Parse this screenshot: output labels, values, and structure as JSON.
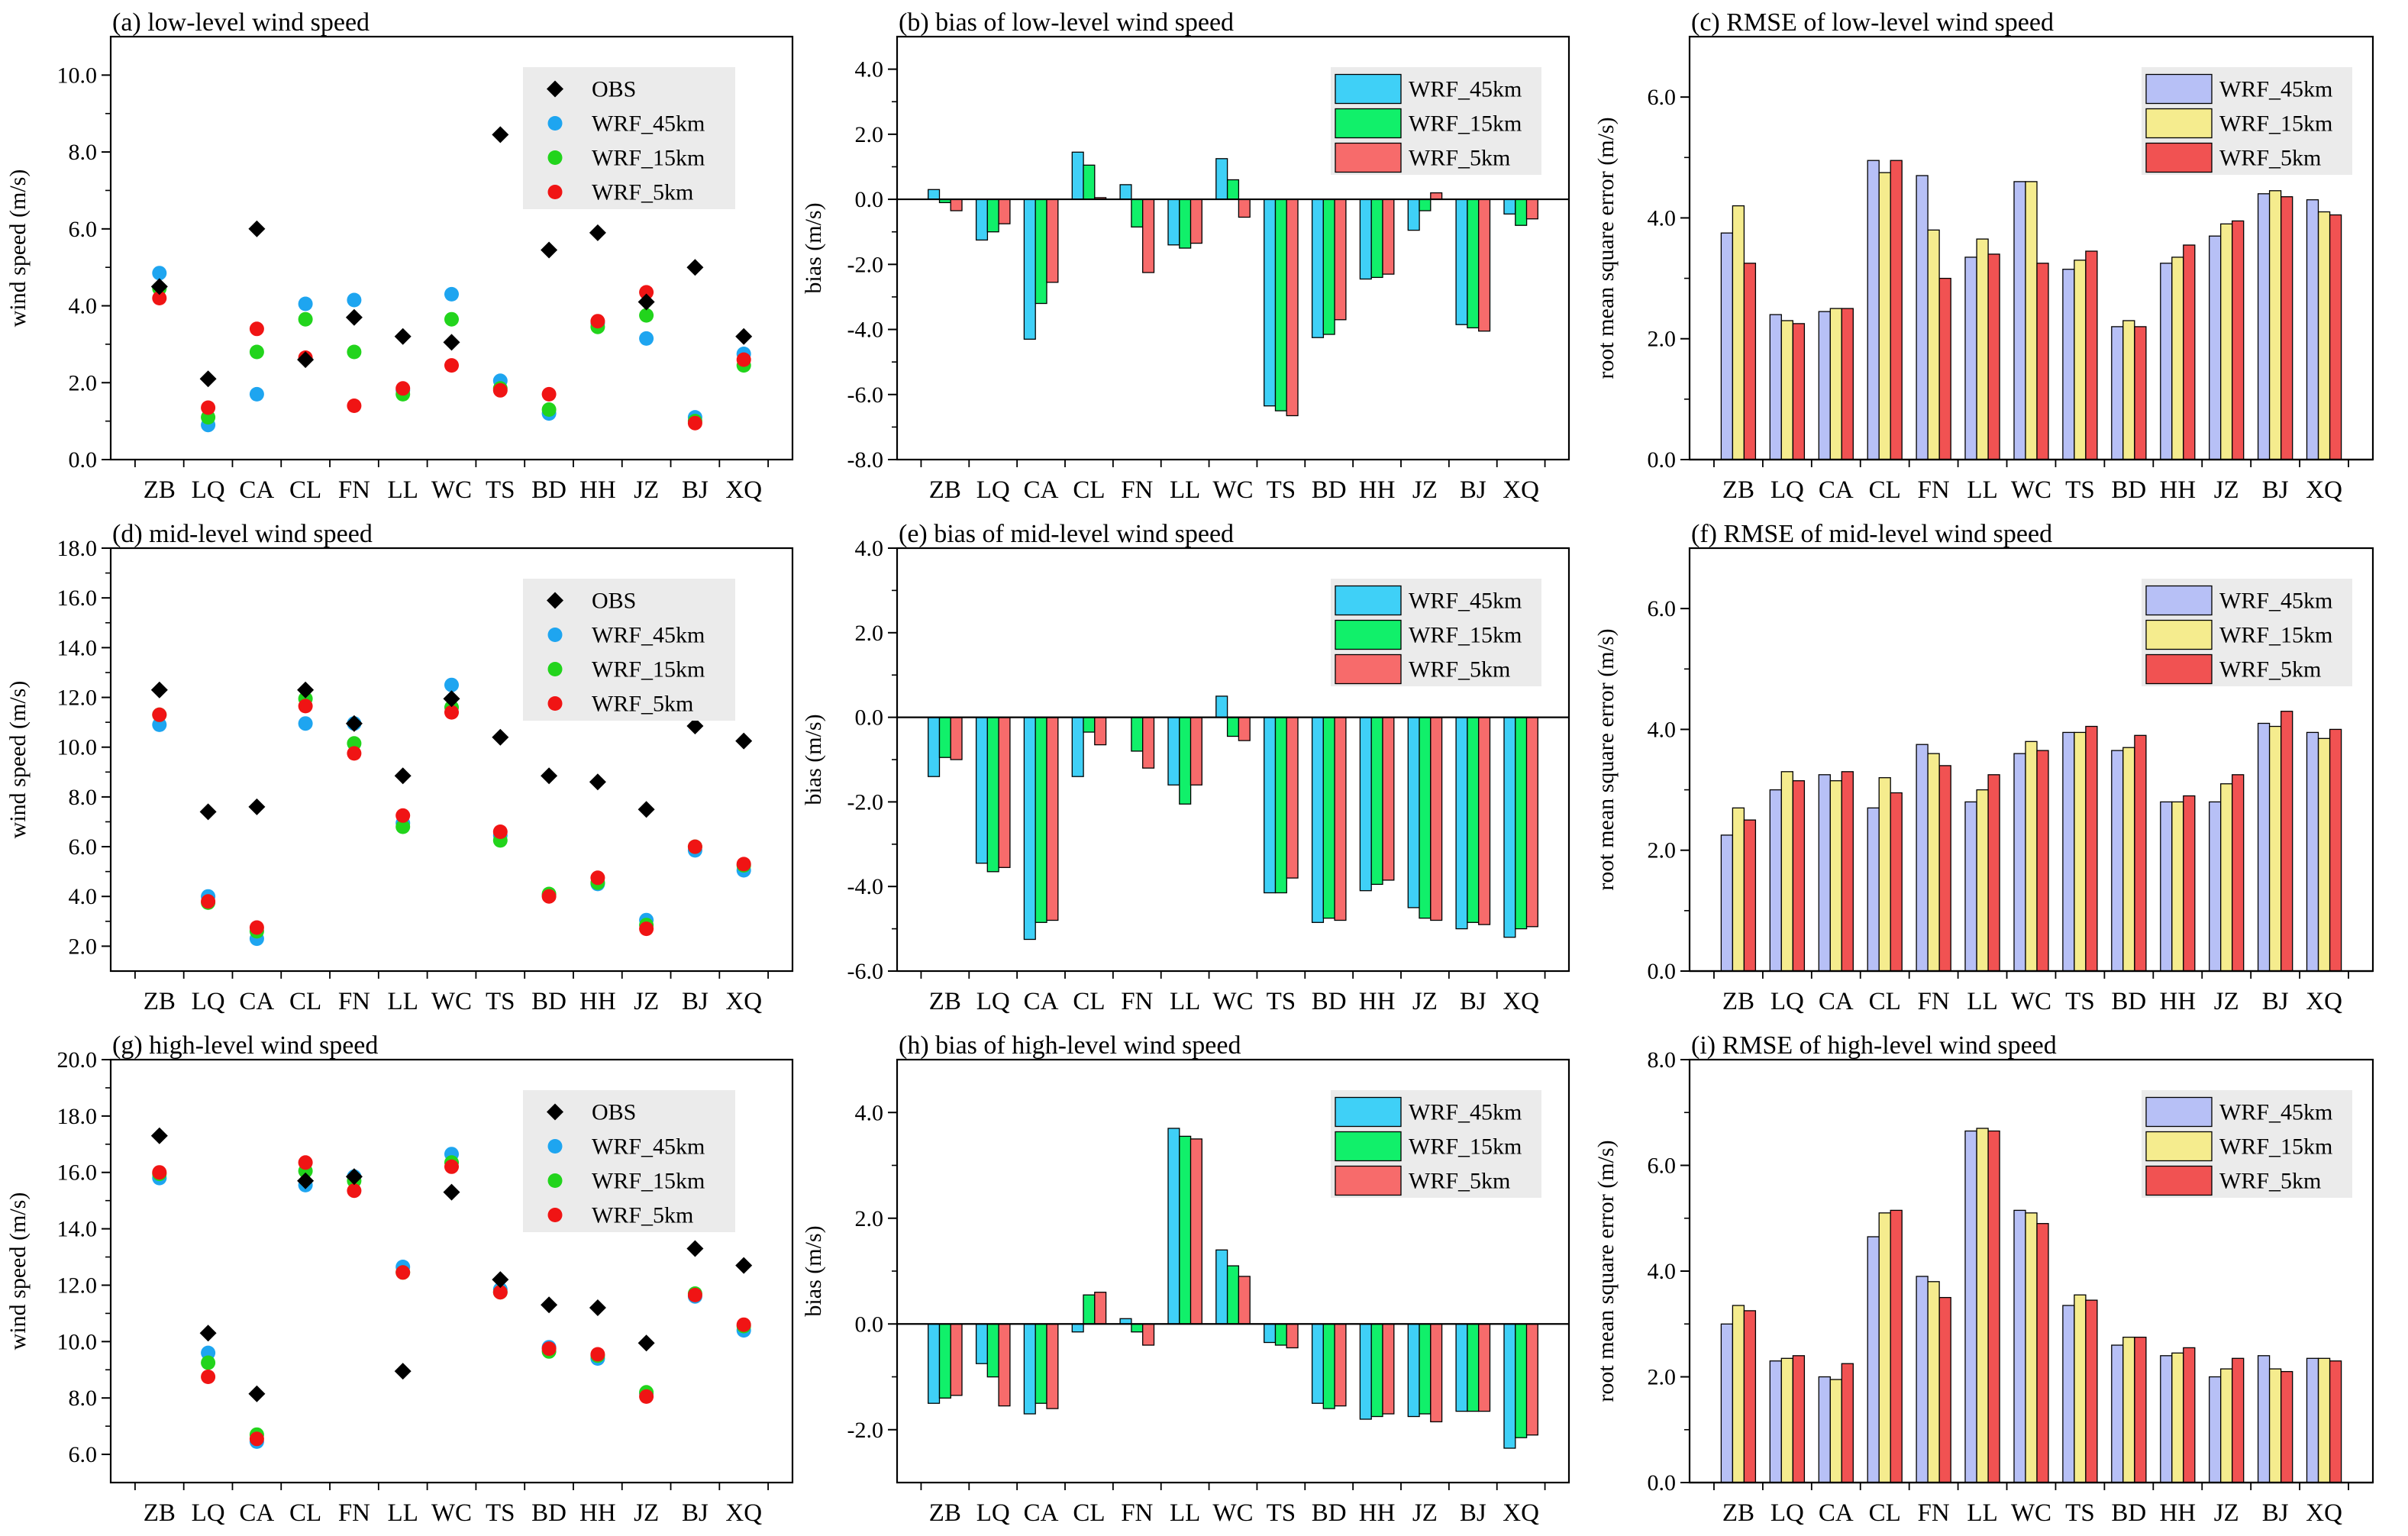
{
  "colors": {
    "scatter": {
      "OBS": "#000000",
      "WRF_45km": "#1ea5f0",
      "WRF_15km": "#22d41c",
      "WRF_5km": "#f01414"
    },
    "bias": {
      "WRF_45km": "#3fd0f7",
      "WRF_15km": "#11f06a",
      "WRF_5km": "#f76b6b"
    },
    "rmse": {
      "WRF_45km": "#b7c0f6",
      "WRF_15km": "#f5ec8e",
      "WRF_5km": "#f15252"
    },
    "legend_bg": "#ebebeb"
  },
  "chart_data": [
    {
      "id": "a",
      "type": "scatter",
      "title": "(a) low-level wind speed",
      "ylabel": "wind speed (m/s)",
      "ylim": [
        0,
        11
      ],
      "yticks": [
        0,
        2,
        4,
        6,
        8,
        10
      ],
      "ytick_labels": [
        "0.0",
        "2.0",
        "4.0",
        "6.0",
        "8.0",
        "10.0"
      ],
      "categories": [
        "ZB",
        "LQ",
        "CA",
        "CL",
        "FN",
        "LL",
        "WC",
        "TS",
        "BD",
        "HH",
        "JZ",
        "BJ",
        "XQ"
      ],
      "series": [
        {
          "name": "OBS",
          "marker": "diamond",
          "values": [
            4.5,
            2.1,
            6.0,
            2.6,
            3.7,
            3.2,
            3.05,
            8.45,
            5.45,
            5.9,
            4.1,
            5.0,
            3.2
          ]
        },
        {
          "name": "WRF_45km",
          "marker": "circle",
          "values": [
            4.85,
            0.9,
            1.7,
            4.05,
            4.15,
            1.8,
            4.3,
            2.05,
            1.2,
            3.55,
            3.15,
            1.1,
            2.75
          ]
        },
        {
          "name": "WRF_15km",
          "marker": "circle",
          "values": [
            4.45,
            1.1,
            2.8,
            3.65,
            2.8,
            1.7,
            3.65,
            1.85,
            1.3,
            3.45,
            3.75,
            1.0,
            2.45
          ]
        },
        {
          "name": "WRF_5km",
          "marker": "circle",
          "values": [
            4.2,
            1.35,
            3.4,
            2.65,
            1.4,
            1.85,
            2.45,
            1.8,
            1.7,
            3.6,
            4.35,
            0.95,
            2.6
          ]
        }
      ]
    },
    {
      "id": "b",
      "type": "bar",
      "title": "(b) bias of low-level wind speed",
      "ylabel": "bias (m/s)",
      "ylim": [
        -8,
        5
      ],
      "yticks": [
        -8,
        -6,
        -4,
        -2,
        0,
        2,
        4
      ],
      "ytick_labels": [
        "-8.0",
        "-6.0",
        "-4.0",
        "-2.0",
        "0.0",
        "2.0",
        "4.0"
      ],
      "categories": [
        "ZB",
        "LQ",
        "CA",
        "CL",
        "FN",
        "LL",
        "WC",
        "TS",
        "BD",
        "HH",
        "JZ",
        "BJ",
        "XQ"
      ],
      "series": [
        {
          "name": "WRF_45km",
          "values": [
            0.3,
            -1.25,
            -4.3,
            1.45,
            0.45,
            -1.4,
            1.25,
            -6.35,
            -4.25,
            -2.45,
            -0.95,
            -3.85,
            -0.45
          ]
        },
        {
          "name": "WRF_15km",
          "values": [
            -0.1,
            -1.0,
            -3.2,
            1.05,
            -0.85,
            -1.5,
            0.6,
            -6.5,
            -4.15,
            -2.4,
            -0.35,
            -3.95,
            -0.8
          ]
        },
        {
          "name": "WRF_5km",
          "values": [
            -0.35,
            -0.75,
            -2.55,
            0.05,
            -2.25,
            -1.35,
            -0.55,
            -6.65,
            -3.7,
            -2.3,
            0.2,
            -4.05,
            -0.6
          ]
        }
      ]
    },
    {
      "id": "c",
      "type": "bar",
      "title": "(c) RMSE of low-level wind speed",
      "ylabel": "root mean square error (m/s)",
      "ylim": [
        0,
        7
      ],
      "yticks": [
        0,
        2,
        4,
        6
      ],
      "ytick_labels": [
        "0.0",
        "2.0",
        "4.0",
        "6.0"
      ],
      "categories": [
        "ZB",
        "LQ",
        "CA",
        "CL",
        "FN",
        "LL",
        "WC",
        "TS",
        "BD",
        "HH",
        "JZ",
        "BJ",
        "XQ"
      ],
      "series": [
        {
          "name": "WRF_45km",
          "values": [
            3.75,
            2.4,
            2.45,
            4.95,
            4.7,
            3.35,
            4.6,
            3.15,
            2.2,
            3.25,
            3.7,
            4.4,
            4.3
          ]
        },
        {
          "name": "WRF_15km",
          "values": [
            4.2,
            2.3,
            2.5,
            4.75,
            3.8,
            3.65,
            4.6,
            3.3,
            2.3,
            3.35,
            3.9,
            4.45,
            4.1
          ]
        },
        {
          "name": "WRF_5km",
          "values": [
            3.25,
            2.25,
            2.5,
            4.95,
            3.0,
            3.4,
            3.25,
            3.45,
            2.2,
            3.55,
            3.95,
            4.35,
            4.05
          ]
        }
      ]
    },
    {
      "id": "d",
      "type": "scatter",
      "title": "(d) mid-level wind speed",
      "ylabel": "wind speed (m/s)",
      "ylim": [
        1,
        18
      ],
      "yticks": [
        2,
        4,
        6,
        8,
        10,
        12,
        14,
        16,
        18
      ],
      "ytick_labels": [
        "2.0",
        "4.0",
        "6.0",
        "8.0",
        "10.0",
        "12.0",
        "14.0",
        "16.0",
        "18.0"
      ],
      "categories": [
        "ZB",
        "LQ",
        "CA",
        "CL",
        "FN",
        "LL",
        "WC",
        "TS",
        "BD",
        "HH",
        "JZ",
        "BJ",
        "XQ"
      ],
      "series": [
        {
          "name": "OBS",
          "marker": "diamond",
          "values": [
            12.3,
            7.4,
            7.6,
            12.3,
            10.95,
            8.85,
            11.95,
            10.4,
            8.85,
            8.6,
            7.5,
            10.85,
            10.25
          ]
        },
        {
          "name": "WRF_45km",
          "marker": "circle",
          "values": [
            10.9,
            4.0,
            2.3,
            10.95,
            10.95,
            6.95,
            12.5,
            6.45,
            4.05,
            4.5,
            3.05,
            5.85,
            5.05
          ]
        },
        {
          "name": "WRF_15km",
          "marker": "circle",
          "values": [
            11.3,
            3.75,
            2.6,
            11.95,
            10.15,
            6.8,
            11.6,
            6.25,
            4.1,
            4.55,
            2.85,
            6.0,
            5.25
          ]
        },
        {
          "name": "WRF_5km",
          "marker": "circle",
          "values": [
            11.3,
            3.8,
            2.75,
            11.65,
            9.75,
            7.25,
            11.4,
            6.6,
            4.0,
            4.75,
            2.7,
            6.0,
            5.3
          ]
        }
      ]
    },
    {
      "id": "e",
      "type": "bar",
      "title": "(e) bias of mid-level wind speed",
      "ylabel": "bias (m/s)",
      "ylim": [
        -6,
        4
      ],
      "yticks": [
        -6,
        -4,
        -2,
        0,
        2,
        4
      ],
      "ytick_labels": [
        "-6.0",
        "-4.0",
        "-2.0",
        "0.0",
        "2.0",
        "4.0"
      ],
      "categories": [
        "ZB",
        "LQ",
        "CA",
        "CL",
        "FN",
        "LL",
        "WC",
        "TS",
        "BD",
        "HH",
        "JZ",
        "BJ",
        "XQ"
      ],
      "series": [
        {
          "name": "WRF_45km",
          "values": [
            -1.4,
            -3.45,
            -5.25,
            -1.4,
            0.0,
            -1.6,
            0.5,
            -4.15,
            -4.85,
            -4.1,
            -4.5,
            -5.0,
            -5.2
          ]
        },
        {
          "name": "WRF_15km",
          "values": [
            -0.95,
            -3.65,
            -4.85,
            -0.35,
            -0.8,
            -2.05,
            -0.45,
            -4.15,
            -4.75,
            -3.95,
            -4.75,
            -4.85,
            -5.0
          ]
        },
        {
          "name": "WRF_5km",
          "values": [
            -1.0,
            -3.55,
            -4.8,
            -0.65,
            -1.2,
            -1.6,
            -0.55,
            -3.8,
            -4.8,
            -3.85,
            -4.8,
            -4.9,
            -4.95
          ]
        }
      ]
    },
    {
      "id": "f",
      "type": "bar",
      "title": "(f) RMSE of mid-level wind speed",
      "ylabel": "root mean square error (m/s)",
      "ylim": [
        0,
        7
      ],
      "yticks": [
        0,
        2,
        4,
        6
      ],
      "ytick_labels": [
        "0.0",
        "2.0",
        "4.0",
        "6.0"
      ],
      "categories": [
        "ZB",
        "LQ",
        "CA",
        "CL",
        "FN",
        "LL",
        "WC",
        "TS",
        "BD",
        "HH",
        "JZ",
        "BJ",
        "XQ"
      ],
      "series": [
        {
          "name": "WRF_45km",
          "values": [
            2.25,
            3.0,
            3.25,
            2.7,
            3.75,
            2.8,
            3.6,
            3.95,
            3.65,
            2.8,
            2.8,
            4.1,
            3.95
          ]
        },
        {
          "name": "WRF_15km",
          "values": [
            2.7,
            3.3,
            3.15,
            3.2,
            3.6,
            3.0,
            3.8,
            3.95,
            3.7,
            2.8,
            3.1,
            4.05,
            3.85
          ]
        },
        {
          "name": "WRF_5km",
          "values": [
            2.5,
            3.15,
            3.3,
            2.95,
            3.4,
            3.25,
            3.65,
            4.05,
            3.9,
            2.9,
            3.25,
            4.3,
            4.0
          ]
        }
      ]
    },
    {
      "id": "g",
      "type": "scatter",
      "title": "(g) high-level wind speed",
      "ylabel": "wind speed (m/s)",
      "ylim": [
        5,
        20
      ],
      "yticks": [
        6,
        8,
        10,
        12,
        14,
        16,
        18,
        20
      ],
      "ytick_labels": [
        "6.0",
        "8.0",
        "10.0",
        "12.0",
        "14.0",
        "16.0",
        "18.0",
        "20.0"
      ],
      "categories": [
        "ZB",
        "LQ",
        "CA",
        "CL",
        "FN",
        "LL",
        "WC",
        "TS",
        "BD",
        "HH",
        "JZ",
        "BJ",
        "XQ"
      ],
      "series": [
        {
          "name": "OBS",
          "marker": "diamond",
          "values": [
            17.3,
            10.3,
            8.15,
            15.7,
            15.85,
            8.95,
            15.3,
            12.2,
            11.3,
            11.2,
            9.95,
            13.3,
            12.7
          ]
        },
        {
          "name": "WRF_45km",
          "marker": "circle",
          "values": [
            15.8,
            9.6,
            6.45,
            15.55,
            15.85,
            12.65,
            16.65,
            11.85,
            9.8,
            9.4,
            8.15,
            11.6,
            10.4
          ]
        },
        {
          "name": "WRF_15km",
          "marker": "circle",
          "values": [
            15.95,
            9.25,
            6.7,
            16.05,
            15.7,
            12.45,
            16.35,
            11.75,
            9.65,
            9.5,
            8.2,
            11.7,
            10.55
          ]
        },
        {
          "name": "WRF_5km",
          "marker": "circle",
          "values": [
            16.0,
            8.75,
            6.55,
            16.35,
            15.35,
            12.45,
            16.2,
            11.75,
            9.75,
            9.55,
            8.05,
            11.65,
            10.6
          ]
        }
      ]
    },
    {
      "id": "h",
      "type": "bar",
      "title": "(h) bias of high-level wind speed",
      "ylabel": "bias (m/s)",
      "ylim": [
        -3,
        5
      ],
      "yticks": [
        -2,
        0,
        2,
        4
      ],
      "ytick_labels": [
        "-2.0",
        "0.0",
        "2.0",
        "4.0"
      ],
      "categories": [
        "ZB",
        "LQ",
        "CA",
        "CL",
        "FN",
        "LL",
        "WC",
        "TS",
        "BD",
        "HH",
        "JZ",
        "BJ",
        "XQ"
      ],
      "series": [
        {
          "name": "WRF_45km",
          "values": [
            -1.5,
            -0.75,
            -1.7,
            -0.15,
            0.1,
            3.7,
            1.4,
            -0.35,
            -1.5,
            -1.8,
            -1.75,
            -1.65,
            -2.35
          ]
        },
        {
          "name": "WRF_15km",
          "values": [
            -1.4,
            -1.0,
            -1.5,
            0.55,
            -0.15,
            3.55,
            1.1,
            -0.4,
            -1.6,
            -1.75,
            -1.7,
            -1.65,
            -2.15
          ]
        },
        {
          "name": "WRF_5km",
          "values": [
            -1.35,
            -1.55,
            -1.6,
            0.6,
            -0.4,
            3.5,
            0.9,
            -0.45,
            -1.55,
            -1.7,
            -1.85,
            -1.65,
            -2.1
          ]
        }
      ]
    },
    {
      "id": "i",
      "type": "bar",
      "title": "(i) RMSE of high-level wind speed",
      "ylabel": "root mean square error (m/s)",
      "ylim": [
        0,
        8
      ],
      "yticks": [
        0,
        2,
        4,
        6,
        8
      ],
      "ytick_labels": [
        "0.0",
        "2.0",
        "4.0",
        "6.0",
        "8.0"
      ],
      "categories": [
        "ZB",
        "LQ",
        "CA",
        "CL",
        "FN",
        "LL",
        "WC",
        "TS",
        "BD",
        "HH",
        "JZ",
        "BJ",
        "XQ"
      ],
      "series": [
        {
          "name": "WRF_45km",
          "values": [
            3.0,
            2.3,
            2.0,
            4.65,
            3.9,
            6.65,
            5.15,
            3.35,
            2.6,
            2.4,
            2.0,
            2.4,
            2.35
          ]
        },
        {
          "name": "WRF_15km",
          "values": [
            3.35,
            2.35,
            1.95,
            5.1,
            3.8,
            6.7,
            5.1,
            3.55,
            2.75,
            2.45,
            2.15,
            2.15,
            2.35
          ]
        },
        {
          "name": "WRF_5km",
          "values": [
            3.25,
            2.4,
            2.25,
            5.15,
            3.5,
            6.65,
            4.9,
            3.45,
            2.75,
            2.55,
            2.35,
            2.1,
            2.3
          ]
        }
      ]
    }
  ]
}
